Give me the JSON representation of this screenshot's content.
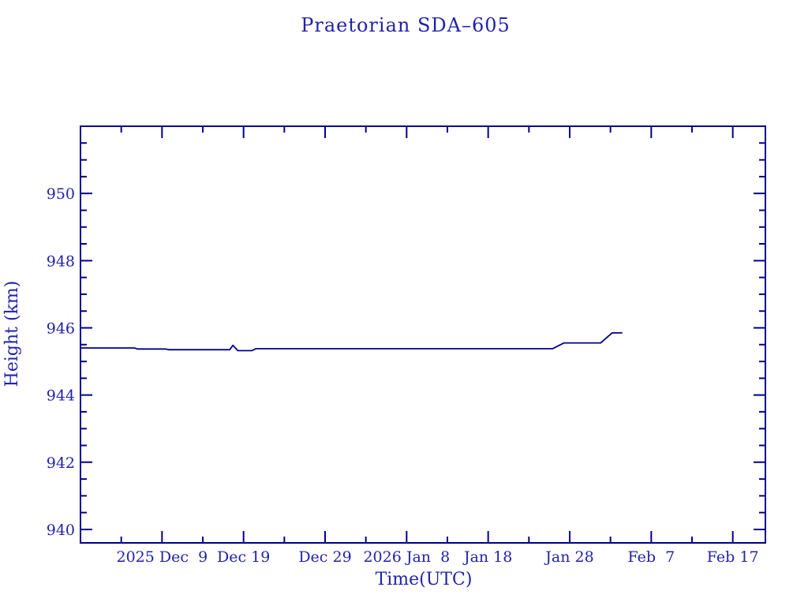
{
  "title": "Praetorian SDA–605",
  "colors": {
    "background": "#ffffff",
    "text": "#2222aa",
    "line": "#00008b"
  },
  "chart_data": {
    "type": "line",
    "title": "Praetorian SDA–605",
    "xlabel": "Time(UTC)",
    "ylabel": "Height (km)",
    "x_unit": "days since 2025-11-29 00:00 UTC",
    "xlim": [
      0,
      84
    ],
    "ylim": [
      939.6,
      952.0
    ],
    "grid": false,
    "legend": "none",
    "frame": "box-with-inward-ticks",
    "x_major_ticks": [
      {
        "day": 10,
        "label": "2025 Dec  9"
      },
      {
        "day": 20,
        "label": "Dec 19"
      },
      {
        "day": 30,
        "label": "Dec 29"
      },
      {
        "day": 40,
        "label": "2026 Jan  8"
      },
      {
        "day": 50,
        "label": "Jan 18"
      },
      {
        "day": 60,
        "label": "Jan 28"
      },
      {
        "day": 70,
        "label": "Feb  7"
      },
      {
        "day": 80,
        "label": "Feb 17"
      }
    ],
    "x_minor_tick_days": [
      5,
      15,
      25,
      35,
      45,
      55,
      65,
      75
    ],
    "y_major_ticks": [
      {
        "value": 940,
        "label": "940"
      },
      {
        "value": 942,
        "label": "942"
      },
      {
        "value": 944,
        "label": "944"
      },
      {
        "value": 946,
        "label": "946"
      },
      {
        "value": 948,
        "label": "948"
      },
      {
        "value": 950,
        "label": "950"
      }
    ],
    "y_minor_step_km": 0.5,
    "series": [
      {
        "name": "height",
        "points": [
          [
            0.0,
            945.4
          ],
          [
            6.6,
            945.4
          ],
          [
            7.0,
            945.37
          ],
          [
            10.4,
            945.37
          ],
          [
            10.9,
            945.35
          ],
          [
            18.3,
            945.35
          ],
          [
            18.7,
            945.48
          ],
          [
            19.3,
            945.32
          ],
          [
            21.0,
            945.32
          ],
          [
            21.5,
            945.38
          ],
          [
            57.9,
            945.38
          ],
          [
            59.3,
            945.55
          ],
          [
            63.8,
            945.55
          ],
          [
            65.2,
            945.85
          ],
          [
            66.4,
            945.85
          ]
        ]
      }
    ]
  }
}
